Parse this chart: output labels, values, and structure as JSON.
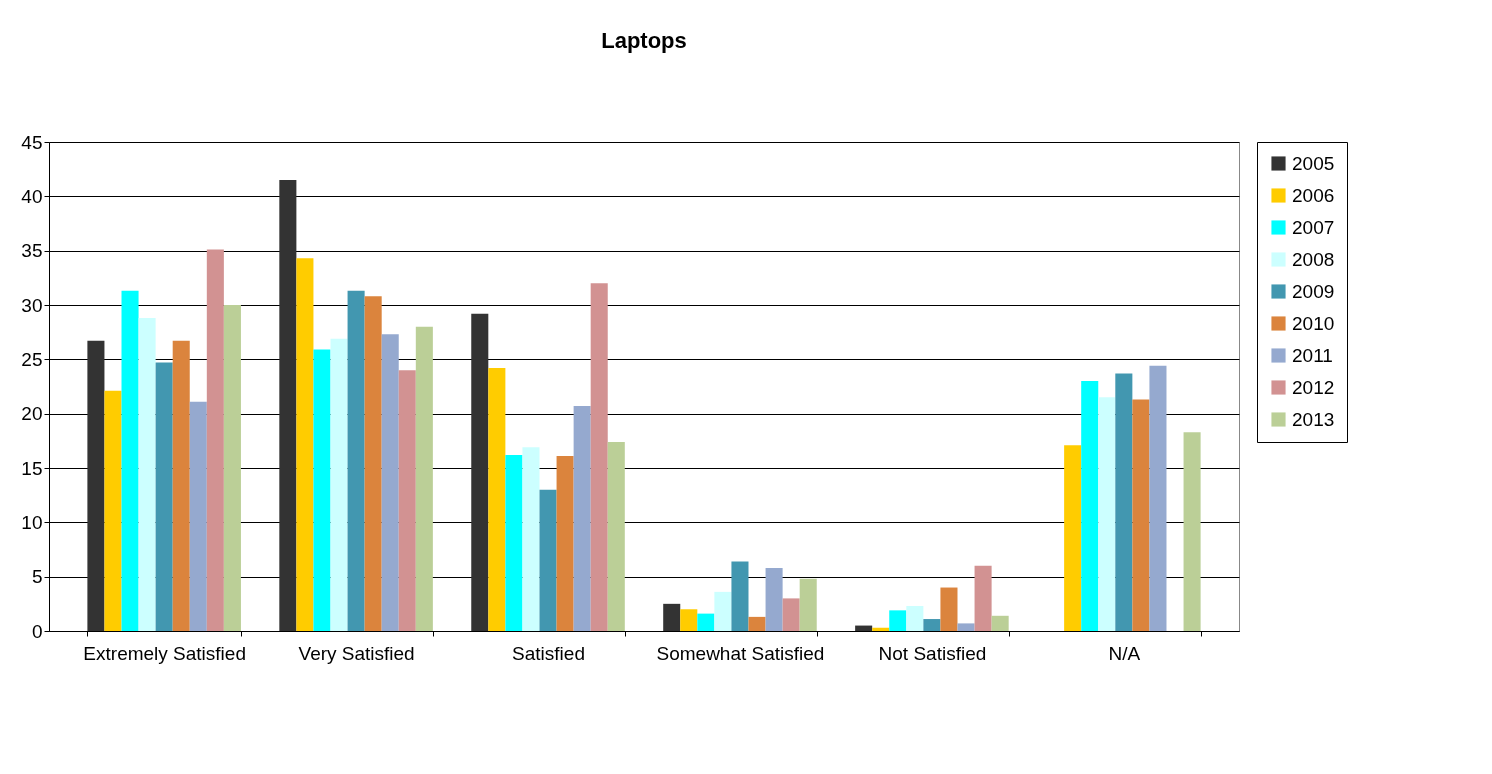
{
  "chart_data": {
    "type": "bar",
    "title": "Laptops",
    "categories": [
      "Extremely Satisfied",
      "Very Satisfied",
      "Satisfied",
      "Somewhat Satisfied",
      "Not Satisfied",
      "N/A"
    ],
    "series": [
      {
        "name": "2005",
        "color": "#333333",
        "values": [
          26.7,
          41.5,
          29.2,
          2.5,
          0.5,
          null
        ]
      },
      {
        "name": "2006",
        "color": "#ffcc00",
        "values": [
          22.1,
          34.3,
          24.2,
          2.0,
          0.3,
          17.1
        ]
      },
      {
        "name": "2007",
        "color": "#00ffff",
        "values": [
          31.3,
          25.9,
          16.2,
          1.6,
          1.9,
          23.0
        ]
      },
      {
        "name": "2008",
        "color": "#ccffff",
        "values": [
          28.8,
          26.9,
          16.9,
          3.6,
          2.3,
          21.5
        ]
      },
      {
        "name": "2009",
        "color": "#4297b0",
        "values": [
          24.7,
          31.3,
          13.0,
          6.4,
          1.1,
          23.7
        ]
      },
      {
        "name": "2010",
        "color": "#db843d",
        "values": [
          26.7,
          30.8,
          16.1,
          1.3,
          4.0,
          21.3
        ]
      },
      {
        "name": "2011",
        "color": "#95a9cf",
        "values": [
          21.1,
          27.3,
          20.7,
          5.8,
          0.7,
          24.4
        ]
      },
      {
        "name": "2012",
        "color": "#d29292",
        "values": [
          35.1,
          24.0,
          32.0,
          3.0,
          6.0,
          null
        ]
      },
      {
        "name": "2013",
        "color": "#bbcf97",
        "values": [
          30.0,
          28.0,
          17.4,
          4.8,
          1.4,
          18.3
        ]
      }
    ],
    "ylim": [
      0,
      45
    ],
    "yticks": [
      0,
      5,
      10,
      15,
      20,
      25,
      30,
      35,
      40,
      45
    ],
    "grid": "y",
    "legend": "right"
  }
}
